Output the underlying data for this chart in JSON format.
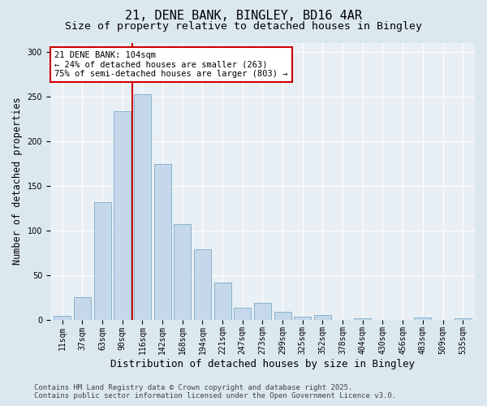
{
  "title_line1": "21, DENE BANK, BINGLEY, BD16 4AR",
  "title_line2": "Size of property relative to detached houses in Bingley",
  "xlabel": "Distribution of detached houses by size in Bingley",
  "ylabel": "Number of detached properties",
  "categories": [
    "11sqm",
    "37sqm",
    "63sqm",
    "90sqm",
    "116sqm",
    "142sqm",
    "168sqm",
    "194sqm",
    "221sqm",
    "247sqm",
    "273sqm",
    "299sqm",
    "325sqm",
    "352sqm",
    "378sqm",
    "404sqm",
    "430sqm",
    "456sqm",
    "483sqm",
    "509sqm",
    "535sqm"
  ],
  "values": [
    4,
    25,
    131,
    233,
    252,
    174,
    107,
    79,
    41,
    13,
    19,
    9,
    3,
    5,
    0,
    1,
    0,
    0,
    2,
    0,
    1
  ],
  "bar_color": "#c5d8ea",
  "bar_edge_color": "#7aaac8",
  "vline_x_index": 3.5,
  "vline_color": "#cc0000",
  "annotation_text": "21 DENE BANK: 104sqm\n← 24% of detached houses are smaller (263)\n75% of semi-detached houses are larger (803) →",
  "annotation_box_color": "#ffffff",
  "annotation_box_edge": "#cc0000",
  "ylim": [
    0,
    310
  ],
  "yticks": [
    0,
    50,
    100,
    150,
    200,
    250,
    300
  ],
  "footer_line1": "Contains HM Land Registry data © Crown copyright and database right 2025.",
  "footer_line2": "Contains public sector information licensed under the Open Government Licence v3.0.",
  "bg_color": "#dce8f0",
  "plot_bg_color": "#e8f0f5",
  "title_fontsize": 11,
  "subtitle_fontsize": 9.5,
  "axis_label_fontsize": 8.5,
  "tick_fontsize": 7,
  "annotation_fontsize": 7.5,
  "footer_fontsize": 6.5
}
